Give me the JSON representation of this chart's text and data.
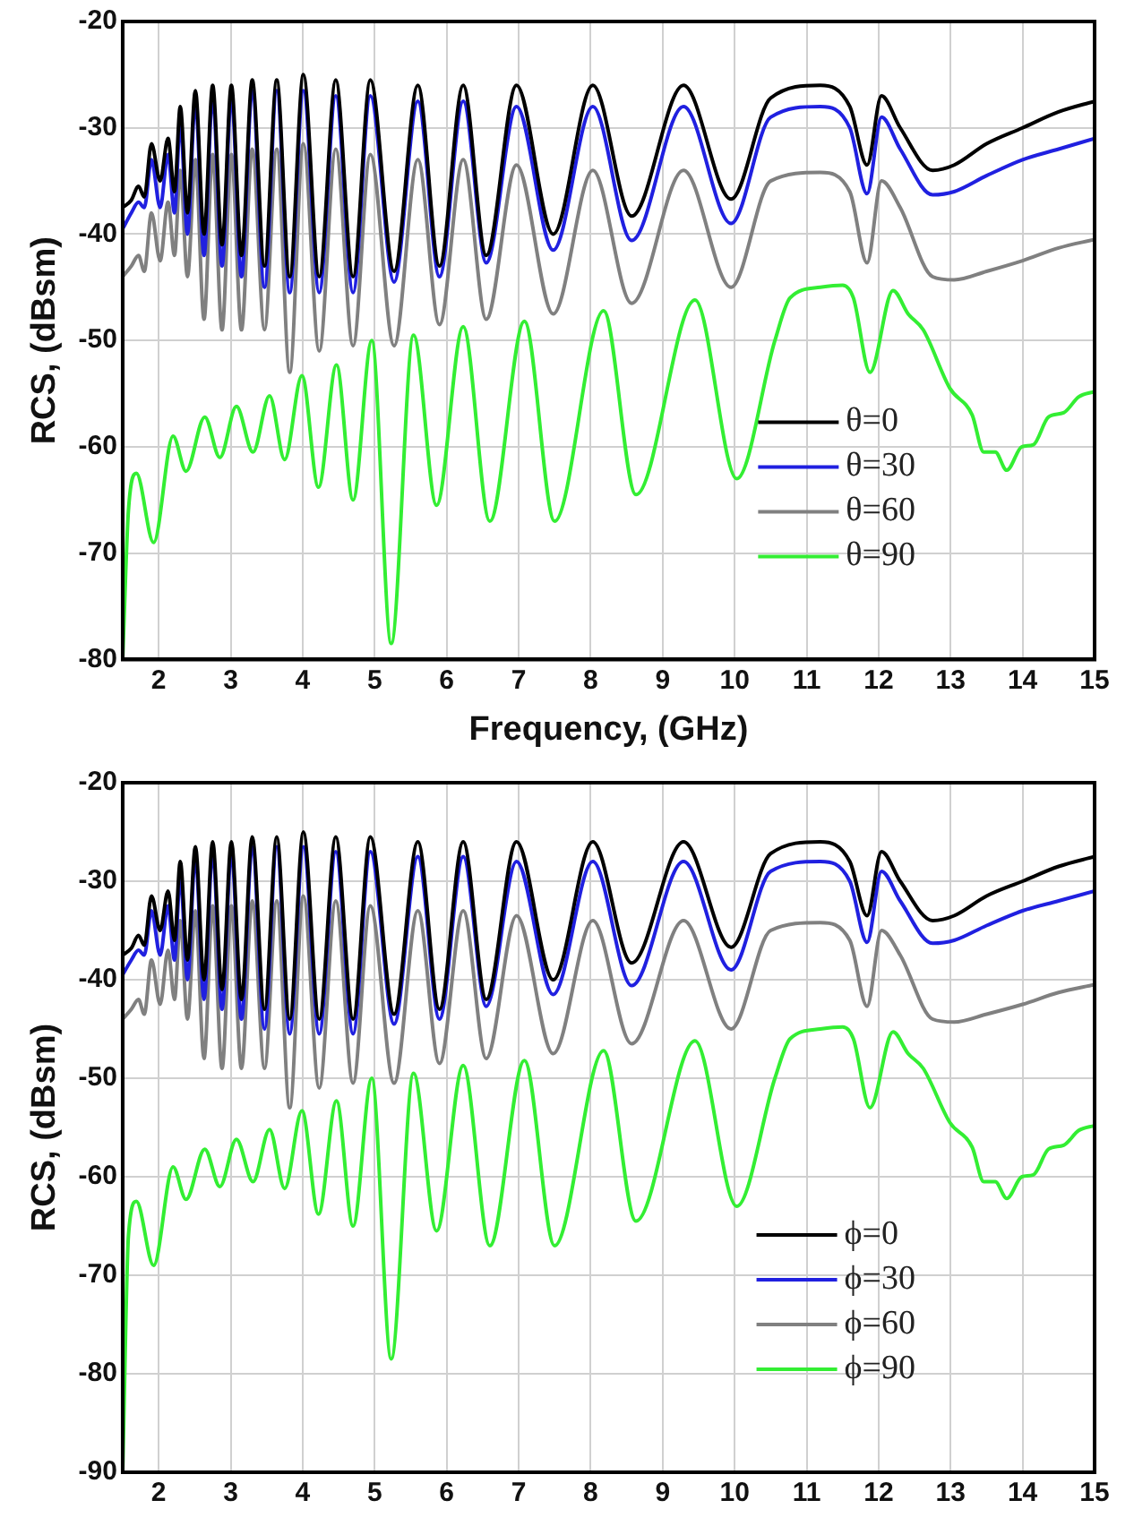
{
  "chart_data": [
    {
      "type": "line",
      "xlabel": "Frequency, (GHz)",
      "ylabel": "RCS, (dBsm)",
      "xlim": [
        1.5,
        15
      ],
      "xticks": [
        2,
        3,
        4,
        5,
        6,
        7,
        8,
        9,
        10,
        11,
        12,
        13,
        14,
        15
      ],
      "ylim": [
        -80,
        -20
      ],
      "yticks": [
        -80,
        -70,
        -60,
        -50,
        -40,
        -30,
        -20
      ],
      "grid": true,
      "legend": "bottom right",
      "x": [
        1.5,
        1.62,
        1.72,
        1.8,
        1.9,
        2.02,
        2.13,
        2.22,
        2.3,
        2.4,
        2.51,
        2.63,
        2.75,
        2.88,
        3.01,
        3.15,
        3.3,
        3.47,
        3.64,
        3.82,
        4.01,
        4.23,
        4.46,
        4.7,
        4.94,
        5.27,
        5.6,
        5.9,
        6.23,
        6.55,
        6.97,
        7.48,
        8.03,
        8.57,
        9.29,
        9.95,
        10.5,
        11.19,
        11.6,
        11.84,
        12.04,
        12.3,
        12.75,
        13.05,
        13.5,
        14,
        14.5,
        15
      ],
      "series": [
        {
          "name": "θ=0",
          "color": "#000000",
          "values": [
            -37.5,
            -36.8,
            -35.5,
            -36.5,
            -31.5,
            -35,
            -31,
            -36,
            -28,
            -38,
            -26.5,
            -40,
            -26,
            -41,
            -26,
            -42,
            -25.5,
            -43,
            -25.5,
            -44,
            -25,
            -44,
            -25.5,
            -44,
            -25.5,
            -43.5,
            -26,
            -43,
            -26,
            -42,
            -26,
            -40,
            -26,
            -38.3,
            -26,
            -36.7,
            -27.2,
            -26,
            -28,
            -33.5,
            -27,
            -30,
            -34,
            -33.5,
            -31.5,
            -30,
            -28.5,
            -27.5
          ]
        },
        {
          "name": "θ=30",
          "color": "#2020e0",
          "values": [
            -39.5,
            -38,
            -37,
            -37.5,
            -33,
            -37.5,
            -32.5,
            -38,
            -29.5,
            -40,
            -27.5,
            -42,
            -27,
            -43,
            -27,
            -44,
            -26.5,
            -45,
            -26.5,
            -45.5,
            -26.5,
            -45.5,
            -27,
            -45.5,
            -27,
            -44.5,
            -27.5,
            -44,
            -27.5,
            -42.7,
            -28,
            -41.5,
            -28,
            -40.6,
            -28,
            -39,
            -29,
            -28,
            -30,
            -36.2,
            -29,
            -32,
            -36.3,
            -36,
            -34.5,
            -33,
            -32,
            -31
          ]
        },
        {
          "name": "θ=60",
          "color": "#808080",
          "values": [
            -44,
            -43,
            -42,
            -43.5,
            -38,
            -42.5,
            -37,
            -42,
            -34,
            -44,
            -33,
            -48,
            -32.5,
            -49,
            -32.5,
            -49,
            -32,
            -49,
            -32,
            -53,
            -31.5,
            -51,
            -32,
            -50.5,
            -32.5,
            -50.5,
            -33,
            -48.5,
            -33,
            -48,
            -33.5,
            -47.5,
            -34,
            -46.5,
            -34,
            -45,
            -35,
            -34.2,
            -36,
            -42.7,
            -35,
            -37.5,
            -44,
            -44.3,
            -43.5,
            -42.5,
            -41.3,
            -40.5
          ]
        },
        {
          "name": "θ=90",
          "color": "#33ee33",
          "x": [
            1.5,
            1.58,
            1.69,
            1.93,
            2.2,
            2.38,
            2.64,
            2.85,
            3.08,
            3.31,
            3.54,
            3.75,
            3.99,
            4.22,
            4.47,
            4.7,
            4.96,
            5.23,
            5.54,
            5.86,
            6.23,
            6.6,
            7.08,
            7.5,
            8.18,
            8.63,
            9.45,
            10.03,
            10.56,
            10.77,
            11.19,
            11.5,
            11.65,
            11.88,
            12.2,
            12.41,
            12.62,
            12.99,
            13.3,
            13.46,
            13.62,
            13.78,
            13.99,
            14.15,
            14.36,
            14.57,
            14.78,
            15
          ],
          "values": [
            -80,
            -66,
            -62.5,
            -69,
            -59,
            -62.3,
            -57.2,
            -61,
            -56.2,
            -60.5,
            -55.2,
            -61.2,
            -53.3,
            -63.8,
            -52.3,
            -65,
            -50,
            -78.5,
            -49.5,
            -65.5,
            -48.7,
            -67,
            -48.2,
            -67,
            -47.2,
            -64.5,
            -46.2,
            -63,
            -50,
            -46,
            -45,
            -44.8,
            -46,
            -53,
            -45.3,
            -47.5,
            -49,
            -54.5,
            -57,
            -60.5,
            -60.5,
            -62.2,
            -60,
            -59.8,
            -57.2,
            -56.8,
            -55.3,
            -54.8
          ]
        }
      ]
    },
    {
      "type": "line",
      "ylabel": "RCS, (dBsm)",
      "xlim": [
        1.5,
        15
      ],
      "xticks": [
        2,
        3,
        4,
        5,
        6,
        7,
        8,
        9,
        10,
        11,
        12,
        13,
        14,
        15
      ],
      "ylim": [
        -90,
        -20
      ],
      "yticks": [
        -90,
        -80,
        -70,
        -60,
        -50,
        -40,
        -30,
        -20
      ],
      "grid": true,
      "legend": "bottom right",
      "x": [
        1.5,
        1.62,
        1.72,
        1.8,
        1.9,
        2.02,
        2.13,
        2.22,
        2.3,
        2.4,
        2.51,
        2.63,
        2.75,
        2.88,
        3.01,
        3.15,
        3.3,
        3.47,
        3.64,
        3.82,
        4.01,
        4.23,
        4.46,
        4.7,
        4.94,
        5.27,
        5.6,
        5.9,
        6.23,
        6.55,
        6.97,
        7.48,
        8.03,
        8.57,
        9.29,
        9.95,
        10.5,
        11.19,
        11.6,
        11.84,
        12.04,
        12.3,
        12.75,
        13.05,
        13.5,
        14,
        14.5,
        15
      ],
      "series": [
        {
          "name": "ϕ=0",
          "color": "#000000",
          "values": [
            -37.5,
            -36.8,
            -35.5,
            -36.5,
            -31.5,
            -35,
            -31,
            -36,
            -28,
            -38,
            -26.5,
            -40,
            -26,
            -41,
            -26,
            -42,
            -25.5,
            -43,
            -25.5,
            -44,
            -25,
            -44,
            -25.5,
            -44,
            -25.5,
            -43.5,
            -26,
            -43,
            -26,
            -42,
            -26,
            -40,
            -26,
            -38.3,
            -26,
            -36.7,
            -27.2,
            -26,
            -28,
            -33.5,
            -27,
            -30,
            -34,
            -33.5,
            -31.5,
            -30,
            -28.5,
            -27.5
          ]
        },
        {
          "name": "ϕ=30",
          "color": "#2020e0",
          "values": [
            -39.5,
            -38,
            -37,
            -37.5,
            -33,
            -37.5,
            -32.5,
            -38,
            -29.5,
            -40,
            -27.5,
            -42,
            -27,
            -43,
            -27,
            -44,
            -26.5,
            -45,
            -26.5,
            -45.5,
            -26.5,
            -45.5,
            -27,
            -45.5,
            -27,
            -44.5,
            -27.5,
            -44,
            -27.5,
            -42.7,
            -28,
            -41.5,
            -28,
            -40.6,
            -28,
            -39,
            -29,
            -28,
            -30,
            -36.2,
            -29,
            -32,
            -36.3,
            -36,
            -34.5,
            -33,
            -32,
            -31
          ]
        },
        {
          "name": "ϕ=60",
          "color": "#808080",
          "values": [
            -44,
            -43,
            -42,
            -43.5,
            -38,
            -42.5,
            -37,
            -42,
            -34,
            -44,
            -33,
            -48,
            -32.5,
            -49,
            -32.5,
            -49,
            -32,
            -49,
            -32,
            -53,
            -31.5,
            -51,
            -32,
            -50.5,
            -32.5,
            -50.5,
            -33,
            -48.5,
            -33,
            -48,
            -33.5,
            -47.5,
            -34,
            -46.5,
            -34,
            -45,
            -35,
            -34.2,
            -36,
            -42.7,
            -35,
            -37.5,
            -44,
            -44.3,
            -43.5,
            -42.5,
            -41.3,
            -40.5
          ]
        },
        {
          "name": "ϕ=90",
          "color": "#33ee33",
          "x": [
            1.5,
            1.58,
            1.69,
            1.93,
            2.2,
            2.38,
            2.64,
            2.85,
            3.08,
            3.31,
            3.54,
            3.75,
            3.99,
            4.22,
            4.47,
            4.7,
            4.96,
            5.23,
            5.54,
            5.86,
            6.23,
            6.6,
            7.08,
            7.5,
            8.18,
            8.63,
            9.45,
            10.03,
            10.56,
            10.77,
            11.19,
            11.5,
            11.65,
            11.88,
            12.2,
            12.41,
            12.62,
            12.99,
            13.3,
            13.46,
            13.62,
            13.78,
            13.99,
            14.15,
            14.36,
            14.57,
            14.78,
            15
          ],
          "values": [
            -90,
            -66,
            -62.5,
            -69,
            -59,
            -62.3,
            -57.2,
            -61,
            -56.2,
            -60.5,
            -55.2,
            -61.2,
            -53.3,
            -63.8,
            -52.3,
            -65,
            -50,
            -78.5,
            -49.5,
            -65.5,
            -48.7,
            -67,
            -48.2,
            -67,
            -47.2,
            -64.5,
            -46.2,
            -63,
            -50,
            -46,
            -45,
            -44.8,
            -46,
            -53,
            -45.3,
            -47.5,
            -49,
            -54.5,
            -57,
            -60.5,
            -60.5,
            -62.2,
            -60,
            -59.8,
            -57.2,
            -56.8,
            -55.3,
            -54.8
          ]
        }
      ]
    }
  ]
}
